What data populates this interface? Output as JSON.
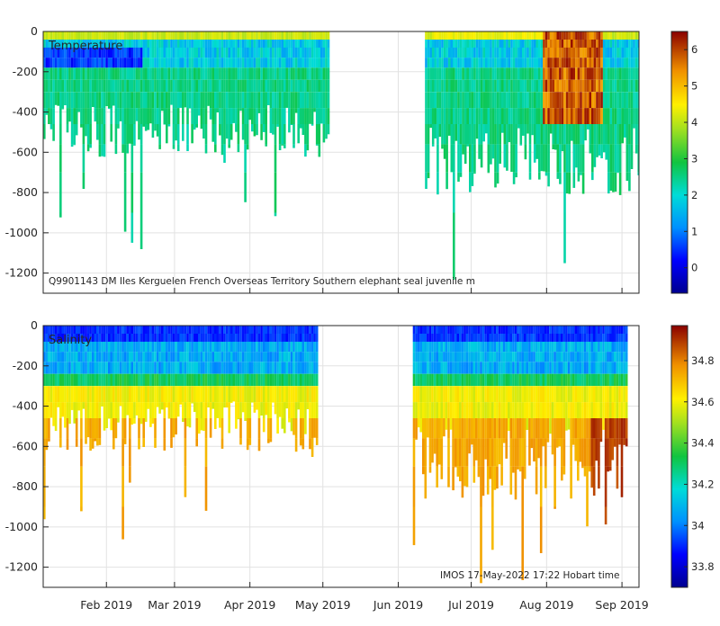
{
  "chart_data": [
    {
      "type": "heatmap",
      "title": "Temperature",
      "annotation": "Q9901143 DM Iles Kerguelen French Overseas Territory Southern elephant seal juvenile m",
      "xlim": [
        0,
        245
      ],
      "ylim": [
        -1300,
        0
      ],
      "yticks": [
        0,
        -200,
        -400,
        -600,
        -800,
        -1000,
        -1200
      ],
      "ytick_labels": [
        "0",
        "-200",
        "-400",
        "-600",
        "-800",
        "-1000",
        "-1200"
      ],
      "colorbar": {
        "range": [
          -0.7,
          6.5
        ],
        "ticks": [
          0,
          1,
          2,
          3,
          4,
          5,
          6
        ],
        "tick_labels": [
          "0",
          "1",
          "2",
          "3",
          "4",
          "5",
          "6"
        ]
      },
      "segments": [
        {
          "start_day": 0,
          "end_day": 117,
          "mean_max_depth": 520,
          "deepest_profile": 1150
        },
        {
          "start_day": 157,
          "end_day": 245,
          "mean_max_depth": 680,
          "deepest_profile": 1270
        }
      ]
    },
    {
      "type": "heatmap",
      "title": "Salinity",
      "annotation": "IMOS 17-May-2022 17:22 Hobart time",
      "xlim": [
        0,
        245
      ],
      "ylim": [
        -1300,
        0
      ],
      "yticks": [
        0,
        -200,
        -400,
        -600,
        -800,
        -1000,
        -1200
      ],
      "ytick_labels": [
        "0",
        "-200",
        "-400",
        "-600",
        "-800",
        "-1000",
        "-1200"
      ],
      "xticks_day": [
        26,
        54,
        85,
        115,
        146,
        176,
        207,
        238
      ],
      "xtick_labels": [
        "Feb 2019",
        "Mar 2019",
        "Apr 2019",
        "May 2019",
        "Jun 2019",
        "Jul 2019",
        "Aug 2019",
        "Sep 2019"
      ],
      "colorbar": {
        "range": [
          33.7,
          34.97
        ],
        "ticks": [
          33.8,
          34,
          34.2,
          34.4,
          34.6,
          34.8
        ],
        "tick_labels": [
          "33.8",
          "34",
          "34.2",
          "34.4",
          "34.6",
          "34.8"
        ]
      },
      "segments": [
        {
          "start_day": 0,
          "end_day": 113,
          "mean_max_depth": 520,
          "deepest_profile": 1130
        },
        {
          "start_day": 152,
          "end_day": 240,
          "mean_max_depth": 720,
          "deepest_profile": 1280
        }
      ]
    }
  ]
}
